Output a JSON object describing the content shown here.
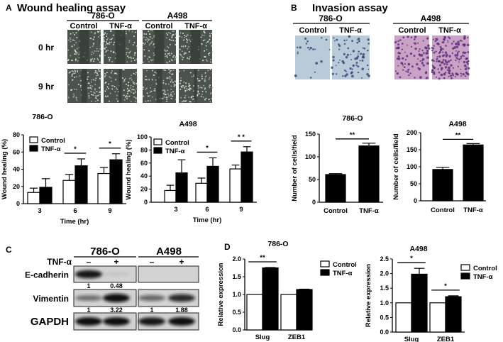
{
  "panel_a": {
    "letter": "A",
    "title": "Wound healing assay",
    "cell_lines": [
      "786-O",
      "A498"
    ],
    "conditions": [
      "Control",
      "TNF-α"
    ],
    "time_rows": [
      "0 hr",
      "9 hr"
    ]
  },
  "panel_b": {
    "letter": "B",
    "title": "Invasion assay",
    "cell_lines": [
      "786-O",
      "A498"
    ],
    "conditions": [
      "Control",
      "TNF-α"
    ]
  },
  "panel_c": {
    "letter": "C",
    "cell_lines": [
      "786-O",
      "A498"
    ],
    "treatment_label": "TNF-α",
    "treatment_marks": [
      "–",
      "+",
      "–",
      "+"
    ],
    "rows": [
      {
        "label": "E-cadherin",
        "quant": [
          "1",
          "0.48",
          "",
          ""
        ]
      },
      {
        "label": "Vimentin",
        "quant": [
          "1",
          "3.22",
          "1",
          "1.88"
        ]
      },
      {
        "label": "GAPDH",
        "quant": [
          "",
          "",
          "",
          ""
        ]
      }
    ]
  },
  "panel_d": {
    "letter": "D"
  },
  "colors": {
    "control": "#ffffff",
    "tnf": "#000000",
    "axis": "#000000",
    "wound_bg": "#4b534c",
    "invasion_786": "#b9cbd8",
    "invasion_a498": "#caa2c6"
  },
  "chart_data": [
    {
      "type": "bar",
      "title": "786-O",
      "xlabel": "Time  (hr)",
      "ylabel": "Wound healing (%)",
      "ylim": [
        0,
        80
      ],
      "yticks": [
        0,
        20,
        40,
        60,
        80
      ],
      "categories": [
        "3",
        "6",
        "9"
      ],
      "legend": "top-left",
      "series": [
        {
          "name": "Control",
          "values": [
            13,
            27,
            35
          ],
          "errors": [
            5,
            7,
            7
          ]
        },
        {
          "name": "TNF-α",
          "values": [
            19,
            44,
            51
          ],
          "errors": [
            10,
            8,
            7
          ]
        }
      ],
      "significance": [
        {
          "category": "6",
          "label": "*"
        },
        {
          "category": "9",
          "label": "*"
        }
      ]
    },
    {
      "type": "bar",
      "title": "A498",
      "xlabel": "Time  (hr)",
      "ylabel": "Wound healing (%)",
      "ylim": [
        0,
        100
      ],
      "yticks": [
        0,
        20,
        40,
        60,
        80,
        100
      ],
      "categories": [
        "3",
        "6",
        "9"
      ],
      "legend": "top-left",
      "series": [
        {
          "name": "Control",
          "values": [
            18,
            29,
            51
          ],
          "errors": [
            8,
            8,
            6
          ]
        },
        {
          "name": "TNF-α",
          "values": [
            45,
            55,
            77
          ],
          "errors": [
            20,
            13,
            8
          ]
        }
      ],
      "significance": [
        {
          "category": "6",
          "label": "*"
        },
        {
          "category": "9",
          "label": "* *"
        }
      ]
    },
    {
      "type": "bar",
      "title": "786-O",
      "xlabel": "",
      "ylabel": "Number of cells/field",
      "ylim": [
        0,
        150
      ],
      "yticks": [
        0,
        50,
        100,
        150
      ],
      "categories": [
        "Control",
        "TNF-α"
      ],
      "series": [
        {
          "values": [
            61,
            124
          ],
          "errors": [
            2,
            6
          ]
        }
      ],
      "significance": [
        {
          "category": "all",
          "label": "**"
        }
      ]
    },
    {
      "type": "bar",
      "title": "A498",
      "xlabel": "",
      "ylabel": "Number of cells/field",
      "ylim": [
        0,
        200
      ],
      "yticks": [
        0,
        50,
        100,
        150,
        200
      ],
      "categories": [
        "Control",
        "TNF-α"
      ],
      "series": [
        {
          "values": [
            92,
            164
          ],
          "errors": [
            6,
            4
          ]
        }
      ],
      "significance": [
        {
          "category": "all",
          "label": "**"
        }
      ]
    },
    {
      "type": "bar",
      "title": "786-O",
      "xlabel": "",
      "ylabel": "Relative expression",
      "ylim": [
        0,
        2.0
      ],
      "yticks": [
        0.0,
        0.5,
        1.0,
        1.5,
        2.0
      ],
      "categories": [
        "Slug",
        "ZEB1"
      ],
      "legend": "right",
      "series": [
        {
          "name": "Control",
          "values": [
            1.0,
            1.0
          ],
          "errors": [
            0,
            0
          ]
        },
        {
          "name": "TNF-α",
          "values": [
            1.75,
            1.14
          ],
          "errors": [
            0.01,
            0.01
          ]
        }
      ],
      "significance": [
        {
          "category": "Slug",
          "label": "**"
        }
      ]
    },
    {
      "type": "bar",
      "title": "A498",
      "xlabel": "",
      "ylabel": "Relative expression",
      "ylim": [
        0,
        2.5
      ],
      "yticks": [
        0.0,
        0.5,
        1.0,
        1.5,
        2.0,
        2.5
      ],
      "categories": [
        "Slug",
        "ZEB1"
      ],
      "legend": "right",
      "series": [
        {
          "name": "Control",
          "values": [
            1.0,
            1.0
          ],
          "errors": [
            0,
            0
          ]
        },
        {
          "name": "TNF-α",
          "values": [
            1.98,
            1.21
          ],
          "errors": [
            0.2,
            0.03
          ]
        }
      ],
      "significance": [
        {
          "category": "Slug",
          "label": "*"
        },
        {
          "category": "ZEB1",
          "label": "*"
        }
      ]
    }
  ]
}
